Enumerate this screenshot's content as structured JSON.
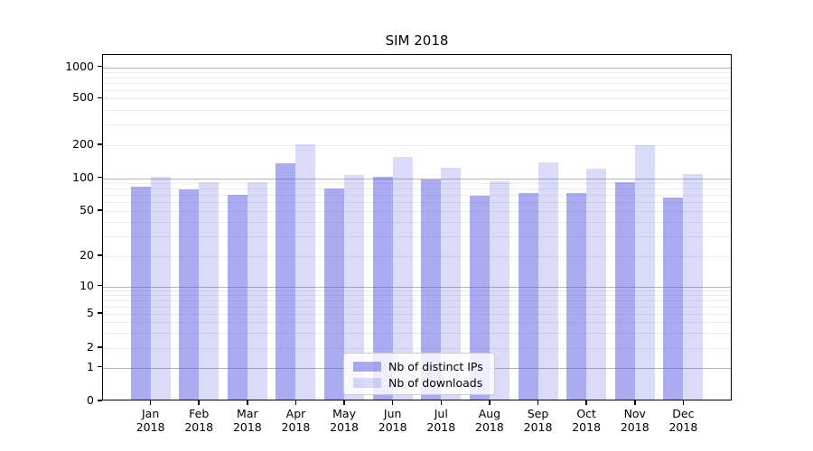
{
  "chart_data": {
    "type": "bar",
    "title": "SIM 2018",
    "x": {
      "months": [
        "Jan",
        "Feb",
        "Mar",
        "Apr",
        "May",
        "Jun",
        "Jul",
        "Aug",
        "Sep",
        "Oct",
        "Nov",
        "Dec"
      ],
      "year": "2018"
    },
    "series": [
      {
        "name": "Nb of distinct IPs",
        "color": "rgba(88,88,228,0.5)",
        "values": [
          80,
          76,
          68,
          131,
          78,
          100,
          94,
          67,
          71,
          71,
          88,
          64
        ]
      },
      {
        "name": "Nb of downloads",
        "color": "rgba(88,88,228,0.22)",
        "values": [
          100,
          89,
          89,
          196,
          103,
          150,
          120,
          90,
          135,
          119,
          191,
          106
        ]
      }
    ],
    "yscale": "symlog",
    "yticks": [
      1000,
      500,
      200,
      100,
      50,
      20,
      10,
      5,
      2,
      1,
      0
    ],
    "ylim": [
      0,
      1300
    ],
    "grid": {
      "major_lines": [
        1,
        10,
        100,
        1000
      ],
      "minor_multipliers": [
        2,
        3,
        4,
        5,
        6,
        7,
        8,
        9
      ],
      "minor_decades": [
        1,
        10,
        100
      ]
    },
    "legend_position": "lower-center"
  }
}
